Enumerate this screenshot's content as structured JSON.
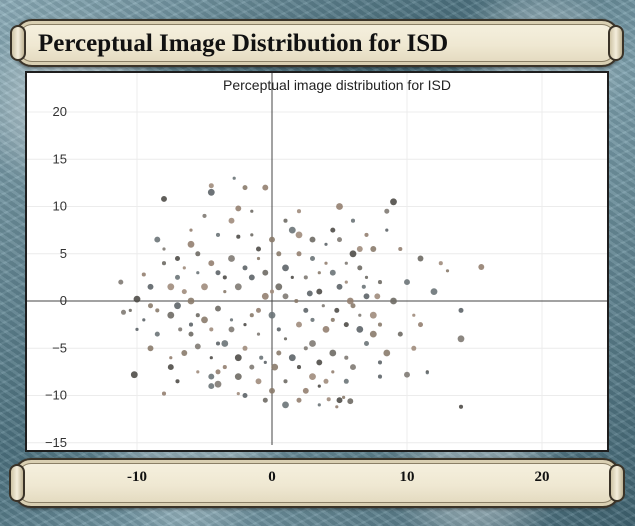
{
  "window": {
    "title": "Perceptual Image Distribution for ISD"
  },
  "colors": {
    "frame": "#5f8593",
    "panel": "#ffffff",
    "gridline": "#ececec",
    "axis_line": "#444444",
    "point_palette": [
      "#6e6a64",
      "#8a7b6c",
      "#5d6468",
      "#7f7a73",
      "#4f4c48",
      "#937f70",
      "#6c7478",
      "#a08c7c"
    ]
  },
  "chart_data": {
    "type": "scatter",
    "title": "Perceptual image distribution for ISD",
    "xlim": [
      -20,
      25
    ],
    "ylim": [
      -15,
      22
    ],
    "x_ticks": [
      -10,
      0,
      10,
      20
    ],
    "y_ticks": [
      20,
      15,
      10,
      5,
      0,
      -5,
      -10,
      -15
    ],
    "grid": true,
    "zero_lines": true,
    "points": [
      [
        -10.5,
        -1.0
      ],
      [
        -9.0,
        -0.5
      ],
      [
        -7.0,
        -0.5
      ],
      [
        -6.8,
        -3.0
      ],
      [
        -7.5,
        -7.0
      ],
      [
        -7.5,
        -6.0
      ],
      [
        -8.5,
        -3.5
      ],
      [
        -7.5,
        1.5
      ],
      [
        -8.0,
        4.0
      ],
      [
        -9.0,
        -5.0
      ],
      [
        -10.0,
        -3.0
      ],
      [
        -11.2,
        2.0
      ],
      [
        -10.0,
        0.2
      ],
      [
        -9.5,
        2.8
      ],
      [
        -8.5,
        6.5
      ],
      [
        -6.5,
        3.5
      ],
      [
        -5.5,
        5.0
      ],
      [
        -6.0,
        0.0
      ],
      [
        -6.0,
        -2.5
      ],
      [
        -5.5,
        -4.8
      ],
      [
        -4.5,
        -6.0
      ],
      [
        -4.0,
        -7.5
      ],
      [
        -3.5,
        -4.5
      ],
      [
        -4.5,
        -3.0
      ],
      [
        -4.0,
        -0.8
      ],
      [
        -3.5,
        1.0
      ],
      [
        -4.0,
        3.0
      ],
      [
        -3.0,
        4.5
      ],
      [
        -2.5,
        6.8
      ],
      [
        -2.5,
        9.8
      ],
      [
        -3.0,
        -2.0
      ],
      [
        -2.0,
        -5.0
      ],
      [
        -2.5,
        -8.0
      ],
      [
        -1.5,
        -1.5
      ],
      [
        -1.5,
        2.5
      ],
      [
        -1.0,
        -3.5
      ],
      [
        -1.0,
        5.5
      ],
      [
        -0.5,
        0.5
      ],
      [
        -0.8,
        -6.0
      ],
      [
        -1.0,
        -8.5
      ],
      [
        -1.5,
        9.5
      ],
      [
        -2.0,
        12.0
      ],
      [
        -4.5,
        11.5
      ],
      [
        -5.0,
        9.0
      ],
      [
        -8.0,
        10.8
      ],
      [
        -6.0,
        7.5
      ],
      [
        -7.0,
        2.5
      ],
      [
        -5.0,
        1.5
      ],
      [
        -5.5,
        -1.5
      ],
      [
        -6.5,
        -5.5
      ],
      [
        -9.5,
        -2.0
      ],
      [
        -11.0,
        -1.2
      ],
      [
        -10.2,
        -7.8
      ],
      [
        -8.0,
        -9.8
      ],
      [
        -4.5,
        -9.0
      ],
      [
        -2.5,
        -9.8
      ],
      [
        -0.5,
        -10.5
      ],
      [
        0.2,
        -7.0
      ],
      [
        0.5,
        -3.0
      ],
      [
        1.0,
        0.5
      ],
      [
        1.5,
        2.5
      ],
      [
        2.0,
        5.0
      ],
      [
        1.5,
        7.5
      ],
      [
        2.0,
        9.5
      ],
      [
        3.0,
        6.5
      ],
      [
        3.5,
        3.0
      ],
      [
        2.5,
        -1.0
      ],
      [
        3.0,
        -4.5
      ],
      [
        2.0,
        -7.0
      ],
      [
        2.5,
        -9.5
      ],
      [
        3.5,
        -11.0
      ],
      [
        4.0,
        -8.5
      ],
      [
        4.5,
        -5.5
      ],
      [
        4.5,
        -2.0
      ],
      [
        5.0,
        1.5
      ],
      [
        5.5,
        4.0
      ],
      [
        4.5,
        7.5
      ],
      [
        5.0,
        10.0
      ],
      [
        6.0,
        8.5
      ],
      [
        6.5,
        5.5
      ],
      [
        7.0,
        2.5
      ],
      [
        6.0,
        -0.5
      ],
      [
        6.5,
        -3.0
      ],
      [
        5.5,
        -6.0
      ],
      [
        5.0,
        -10.5
      ],
      [
        4.8,
        -11.2
      ],
      [
        7.0,
        -4.5
      ],
      [
        7.5,
        -1.5
      ],
      [
        8.0,
        2.0
      ],
      [
        7.5,
        5.5
      ],
      [
        8.5,
        7.5
      ],
      [
        8.5,
        9.5
      ],
      [
        9.0,
        10.5
      ],
      [
        9.5,
        5.5
      ],
      [
        10.0,
        2.0
      ],
      [
        10.5,
        -1.5
      ],
      [
        9.5,
        -3.5
      ],
      [
        8.5,
        -5.5
      ],
      [
        8.0,
        -8.0
      ],
      [
        10.0,
        -7.8
      ],
      [
        11.5,
        -7.5
      ],
      [
        11.0,
        -2.5
      ],
      [
        12.0,
        1.0
      ],
      [
        12.5,
        4.0
      ],
      [
        11.0,
        4.5
      ],
      [
        13.0,
        3.2
      ],
      [
        14.0,
        -1.0
      ],
      [
        14.0,
        -4.0
      ],
      [
        14.0,
        -11.2
      ],
      [
        15.5,
        3.6
      ],
      [
        11.5,
        -7.6
      ],
      [
        10.5,
        -5.0
      ],
      [
        9.0,
        0.0
      ],
      [
        8.0,
        -2.5
      ],
      [
        7.0,
        0.5
      ],
      [
        6.5,
        -1.5
      ],
      [
        5.5,
        -2.5
      ],
      [
        4.0,
        -3.0
      ],
      [
        3.0,
        -2.0
      ],
      [
        2.0,
        -2.5
      ],
      [
        1.0,
        -4.0
      ],
      [
        0.5,
        -5.5
      ],
      [
        1.5,
        -6.0
      ],
      [
        2.5,
        -5.0
      ],
      [
        3.5,
        -6.5
      ],
      [
        4.5,
        -7.5
      ],
      [
        5.5,
        -8.5
      ],
      [
        3.0,
        -8.0
      ],
      [
        1.0,
        -8.5
      ],
      [
        0.0,
        -9.5
      ],
      [
        -0.5,
        -6.5
      ],
      [
        -1.5,
        -7.0
      ],
      [
        -2.5,
        -6.0
      ],
      [
        -3.5,
        -7.0
      ],
      [
        -4.5,
        -8.0
      ],
      [
        -5.5,
        -7.5
      ],
      [
        -6.0,
        -3.5
      ],
      [
        -5.0,
        -2.0
      ],
      [
        -4.0,
        -4.5
      ],
      [
        -3.0,
        -3.0
      ],
      [
        -2.0,
        -2.5
      ],
      [
        -1.0,
        -1.0
      ],
      [
        0.0,
        -1.5
      ],
      [
        0.0,
        1.0
      ],
      [
        -0.5,
        3.0
      ],
      [
        -1.0,
        4.5
      ],
      [
        -2.0,
        3.5
      ],
      [
        -2.5,
        1.5
      ],
      [
        -3.5,
        2.5
      ],
      [
        -4.5,
        4.0
      ],
      [
        -5.5,
        3.0
      ],
      [
        -6.5,
        1.0
      ],
      [
        -7.5,
        -1.5
      ],
      [
        -8.5,
        -1.0
      ],
      [
        -9.0,
        1.5
      ],
      [
        -8.0,
        5.5
      ],
      [
        -7.0,
        4.5
      ],
      [
        -6.0,
        6.0
      ],
      [
        -4.0,
        7.0
      ],
      [
        -3.0,
        8.5
      ],
      [
        -1.5,
        7.0
      ],
      [
        0.5,
        5.0
      ],
      [
        1.0,
        3.5
      ],
      [
        2.5,
        2.5
      ],
      [
        3.5,
        1.0
      ],
      [
        4.0,
        4.0
      ],
      [
        3.0,
        4.5
      ],
      [
        2.0,
        7.0
      ],
      [
        1.0,
        8.5
      ],
      [
        0.0,
        6.5
      ],
      [
        4.0,
        6.0
      ],
      [
        5.0,
        6.5
      ],
      [
        6.0,
        5.0
      ],
      [
        7.0,
        7.0
      ],
      [
        4.5,
        3.0
      ],
      [
        5.5,
        2.0
      ],
      [
        6.5,
        3.5
      ],
      [
        7.5,
        -3.5
      ],
      [
        8.0,
        -6.5
      ],
      [
        6.0,
        -7.0
      ],
      [
        3.5,
        -9.0
      ],
      [
        2.0,
        -10.5
      ],
      [
        1.0,
        -11.0
      ],
      [
        4.2,
        -10.4
      ],
      [
        5.8,
        -10.6
      ],
      [
        5.3,
        -10.2
      ],
      [
        -2.0,
        -10.0
      ],
      [
        -4.0,
        -8.8
      ],
      [
        -7.0,
        -8.5
      ],
      [
        -0.5,
        12.0
      ],
      [
        -2.8,
        13.0
      ],
      [
        -4.5,
        12.2
      ],
      [
        0.5,
        1.5
      ],
      [
        1.8,
        0.0
      ],
      [
        2.8,
        0.8
      ],
      [
        3.8,
        -0.5
      ],
      [
        4.8,
        -1.0
      ],
      [
        5.8,
        0.0
      ],
      [
        6.8,
        1.5
      ],
      [
        7.8,
        0.5
      ]
    ]
  }
}
